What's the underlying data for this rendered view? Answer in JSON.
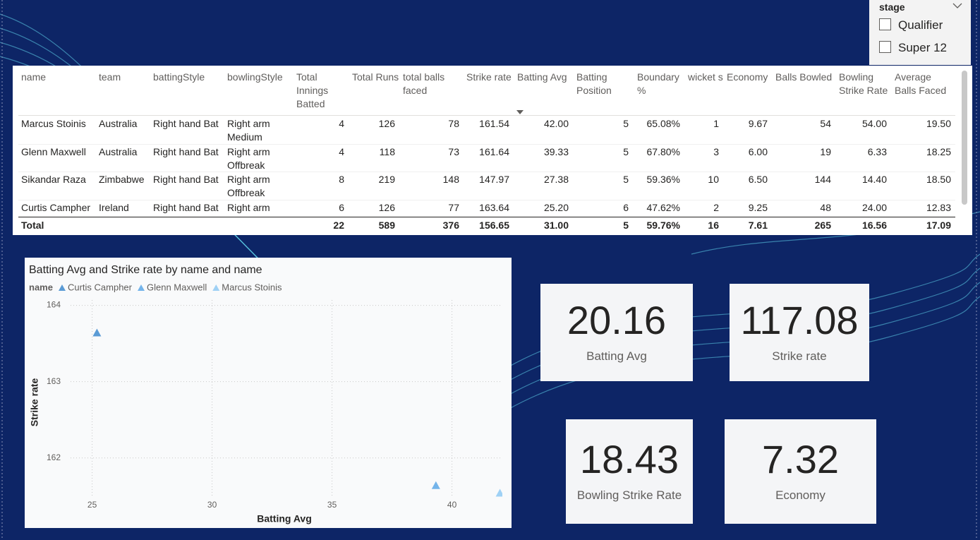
{
  "slicer": {
    "title": "stage",
    "options": [
      "Qualifier",
      "Super 12"
    ]
  },
  "table": {
    "columns": [
      "name",
      "team",
      "battingStyle",
      "bowlingStyle",
      "Total Innings Batted",
      "Total Runs",
      "total balls faced",
      "Strike rate",
      "Batting Avg",
      "Batting Position",
      "Boundary %",
      "wicket s",
      "Economy",
      "Balls Bowled",
      "Bowling Strike Rate",
      "Average Balls Faced"
    ],
    "rows": [
      [
        "Marcus Stoinis",
        "Australia",
        "Right hand Bat",
        "Right arm Medium",
        "4",
        "126",
        "78",
        "161.54",
        "42.00",
        "5",
        "65.08%",
        "1",
        "9.67",
        "54",
        "54.00",
        "19.50"
      ],
      [
        "Glenn Maxwell",
        "Australia",
        "Right hand Bat",
        "Right arm Offbreak",
        "4",
        "118",
        "73",
        "161.64",
        "39.33",
        "5",
        "67.80%",
        "3",
        "6.00",
        "19",
        "6.33",
        "18.25"
      ],
      [
        "Sikandar Raza",
        "Zimbabwe",
        "Right hand Bat",
        "Right arm Offbreak",
        "8",
        "219",
        "148",
        "147.97",
        "27.38",
        "5",
        "59.36%",
        "10",
        "6.50",
        "144",
        "14.40",
        "18.50"
      ],
      [
        "Curtis Campher",
        "Ireland",
        "Right hand Bat",
        "Right arm",
        "6",
        "126",
        "77",
        "163.64",
        "25.20",
        "6",
        "47.62%",
        "2",
        "9.25",
        "48",
        "24.00",
        "12.83"
      ]
    ],
    "total": [
      "Total",
      "",
      "",
      "",
      "22",
      "589",
      "376",
      "156.65",
      "31.00",
      "5",
      "59.76%",
      "16",
      "7.61",
      "265",
      "16.56",
      "17.09"
    ]
  },
  "chart_data": {
    "type": "scatter",
    "title": "Batting Avg and Strike rate by name and name",
    "legend_title": "name",
    "x_label": "Batting Avg",
    "y_label": "Strike rate",
    "series": [
      {
        "name": "Curtis Campher",
        "color": "#5b9bd5",
        "x": [
          25.2
        ],
        "values": [
          163.64
        ]
      },
      {
        "name": "Glenn Maxwell",
        "color": "#74b4ea",
        "x": [
          39.33
        ],
        "values": [
          161.64
        ]
      },
      {
        "name": "Marcus Stoinis",
        "color": "#9fd1f5",
        "x": [
          42.0
        ],
        "values": [
          161.54
        ]
      }
    ],
    "xlim": [
      24.1,
      42.1
    ],
    "xticks": [
      25,
      30,
      35,
      40
    ],
    "ylim": [
      161.48,
      164.07
    ],
    "yticks": [
      162,
      163,
      164
    ],
    "grid": true
  },
  "cards": [
    {
      "value": "20.16",
      "label": "Batting Avg"
    },
    {
      "value": "117.08",
      "label": "Strike rate"
    },
    {
      "value": "18.43",
      "label": "Bowling Strike Rate"
    },
    {
      "value": "7.32",
      "label": "Economy"
    }
  ]
}
